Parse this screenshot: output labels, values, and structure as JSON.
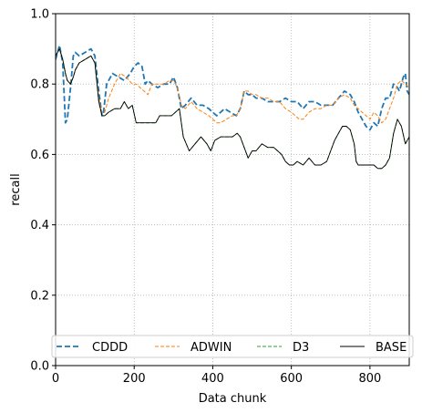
{
  "chart_data": {
    "type": "line",
    "xlabel": "Data chunk",
    "ylabel": "recall",
    "xlim": [
      0,
      900
    ],
    "ylim": [
      0,
      1.0
    ],
    "xticks": [
      0,
      200,
      400,
      600,
      800
    ],
    "xtick_labels": [
      "0",
      "200",
      "400",
      "600",
      "800"
    ],
    "yticks": [
      0.0,
      0.2,
      0.4,
      0.6,
      0.8,
      1.0
    ],
    "ytick_labels": [
      "0.0",
      "0.2",
      "0.4",
      "0.6",
      "0.8",
      "1.0"
    ],
    "grid": true,
    "legend_position": "lower center",
    "series": [
      {
        "name": "CDDD",
        "color": "#1f77b4",
        "style": "dashed",
        "x": [
          0,
          10,
          18,
          25,
          30,
          38,
          45,
          50,
          60,
          75,
          90,
          100,
          110,
          118,
          122,
          130,
          145,
          160,
          175,
          190,
          200,
          210,
          220,
          228,
          235,
          245,
          260,
          275,
          290,
          300,
          310,
          320,
          330,
          345,
          360,
          375,
          390,
          400,
          410,
          420,
          430,
          445,
          460,
          470,
          480,
          490,
          500,
          510,
          525,
          540,
          555,
          570,
          585,
          600,
          615,
          630,
          645,
          660,
          675,
          690,
          705,
          720,
          735,
          750,
          760,
          770,
          780,
          790,
          800,
          810,
          820,
          830,
          840,
          850,
          860,
          870,
          875,
          880,
          885,
          890,
          895,
          900
        ],
        "y": [
          0.87,
          0.91,
          0.86,
          0.69,
          0.7,
          0.79,
          0.88,
          0.89,
          0.88,
          0.89,
          0.9,
          0.88,
          0.78,
          0.71,
          0.72,
          0.8,
          0.83,
          0.82,
          0.81,
          0.83,
          0.85,
          0.86,
          0.85,
          0.8,
          0.81,
          0.8,
          0.79,
          0.8,
          0.8,
          0.82,
          0.79,
          0.73,
          0.74,
          0.76,
          0.74,
          0.74,
          0.73,
          0.72,
          0.71,
          0.72,
          0.73,
          0.72,
          0.71,
          0.73,
          0.78,
          0.77,
          0.77,
          0.76,
          0.76,
          0.75,
          0.75,
          0.75,
          0.76,
          0.75,
          0.75,
          0.73,
          0.75,
          0.75,
          0.74,
          0.74,
          0.74,
          0.76,
          0.78,
          0.77,
          0.75,
          0.72,
          0.7,
          0.68,
          0.67,
          0.69,
          0.68,
          0.73,
          0.76,
          0.76,
          0.8,
          0.79,
          0.78,
          0.8,
          0.82,
          0.83,
          0.78,
          0.77
        ]
      },
      {
        "name": "ADWIN",
        "color": "#ff7f0e",
        "style": "dashed",
        "x": [
          0,
          10,
          18,
          25,
          30,
          38,
          45,
          50,
          60,
          75,
          90,
          100,
          110,
          118,
          125,
          135,
          150,
          165,
          180,
          195,
          205,
          215,
          225,
          235,
          245,
          260,
          275,
          290,
          300,
          310,
          320,
          330,
          345,
          360,
          375,
          390,
          400,
          410,
          420,
          435,
          450,
          460,
          470,
          480,
          490,
          500,
          510,
          525,
          540,
          555,
          570,
          585,
          600,
          610,
          620,
          630,
          645,
          660,
          675,
          690,
          705,
          720,
          735,
          750,
          760,
          770,
          780,
          790,
          800,
          810,
          820,
          830,
          840,
          850,
          860,
          870,
          880,
          890,
          900
        ],
        "y": [
          0.88,
          0.9,
          0.87,
          0.83,
          0.81,
          0.8,
          0.82,
          0.84,
          0.86,
          0.87,
          0.88,
          0.86,
          0.76,
          0.72,
          0.72,
          0.76,
          0.8,
          0.83,
          0.82,
          0.8,
          0.8,
          0.79,
          0.78,
          0.77,
          0.8,
          0.8,
          0.8,
          0.81,
          0.81,
          0.79,
          0.74,
          0.73,
          0.75,
          0.73,
          0.72,
          0.71,
          0.7,
          0.69,
          0.69,
          0.7,
          0.71,
          0.71,
          0.73,
          0.78,
          0.78,
          0.77,
          0.77,
          0.76,
          0.76,
          0.75,
          0.75,
          0.73,
          0.72,
          0.71,
          0.7,
          0.7,
          0.72,
          0.73,
          0.73,
          0.74,
          0.74,
          0.76,
          0.77,
          0.76,
          0.74,
          0.73,
          0.72,
          0.71,
          0.7,
          0.72,
          0.71,
          0.69,
          0.7,
          0.73,
          0.76,
          0.8,
          0.81,
          0.8,
          0.79
        ]
      },
      {
        "name": "D3",
        "color": "#2ca02c",
        "style": "dashed",
        "x": [
          0,
          10,
          18,
          25,
          30,
          38,
          45,
          50,
          60,
          75,
          90,
          100,
          110,
          118,
          125,
          135,
          150,
          165,
          175,
          185,
          195,
          205,
          220,
          240,
          255,
          265,
          280,
          295,
          305,
          315,
          325,
          340,
          355,
          370,
          385,
          395,
          405,
          420,
          435,
          450,
          462,
          470,
          480,
          490,
          500,
          510,
          525,
          540,
          555,
          565,
          575,
          585,
          595,
          605,
          615,
          630,
          645,
          660,
          675,
          690,
          700,
          710,
          720,
          730,
          740,
          750,
          760,
          765,
          770,
          780,
          790,
          800,
          810,
          820,
          830,
          840,
          850,
          860,
          870,
          875,
          880,
          890,
          900
        ],
        "y": [
          0.88,
          0.9,
          0.87,
          0.83,
          0.81,
          0.8,
          0.82,
          0.84,
          0.86,
          0.87,
          0.88,
          0.86,
          0.75,
          0.71,
          0.71,
          0.72,
          0.73,
          0.73,
          0.75,
          0.73,
          0.74,
          0.69,
          0.69,
          0.69,
          0.69,
          0.71,
          0.71,
          0.71,
          0.72,
          0.73,
          0.65,
          0.61,
          0.63,
          0.65,
          0.63,
          0.61,
          0.64,
          0.65,
          0.65,
          0.65,
          0.66,
          0.65,
          0.62,
          0.59,
          0.61,
          0.61,
          0.63,
          0.62,
          0.62,
          0.61,
          0.6,
          0.58,
          0.57,
          0.57,
          0.58,
          0.57,
          0.59,
          0.57,
          0.57,
          0.58,
          0.61,
          0.64,
          0.66,
          0.68,
          0.68,
          0.67,
          0.63,
          0.58,
          0.57,
          0.57,
          0.57,
          0.57,
          0.57,
          0.56,
          0.56,
          0.57,
          0.59,
          0.66,
          0.7,
          0.69,
          0.68,
          0.63,
          0.65
        ]
      },
      {
        "name": "BASE",
        "color": "#000000",
        "style": "solid",
        "x": [
          0,
          10,
          18,
          25,
          30,
          38,
          45,
          50,
          60,
          75,
          90,
          100,
          110,
          118,
          125,
          135,
          150,
          165,
          175,
          185,
          195,
          205,
          220,
          240,
          255,
          265,
          280,
          295,
          305,
          315,
          325,
          340,
          355,
          370,
          385,
          395,
          405,
          420,
          435,
          450,
          462,
          470,
          480,
          490,
          500,
          510,
          525,
          540,
          555,
          565,
          575,
          585,
          595,
          605,
          615,
          630,
          645,
          660,
          675,
          690,
          700,
          710,
          720,
          730,
          740,
          750,
          760,
          765,
          770,
          780,
          790,
          800,
          810,
          820,
          830,
          840,
          850,
          860,
          870,
          875,
          880,
          890,
          900
        ],
        "y": [
          0.88,
          0.9,
          0.87,
          0.83,
          0.81,
          0.8,
          0.82,
          0.84,
          0.86,
          0.87,
          0.88,
          0.86,
          0.75,
          0.71,
          0.71,
          0.72,
          0.73,
          0.73,
          0.75,
          0.73,
          0.74,
          0.69,
          0.69,
          0.69,
          0.69,
          0.71,
          0.71,
          0.71,
          0.72,
          0.73,
          0.65,
          0.61,
          0.63,
          0.65,
          0.63,
          0.61,
          0.64,
          0.65,
          0.65,
          0.65,
          0.66,
          0.65,
          0.62,
          0.59,
          0.61,
          0.61,
          0.63,
          0.62,
          0.62,
          0.61,
          0.6,
          0.58,
          0.57,
          0.57,
          0.58,
          0.57,
          0.59,
          0.57,
          0.57,
          0.58,
          0.61,
          0.64,
          0.66,
          0.68,
          0.68,
          0.67,
          0.63,
          0.58,
          0.57,
          0.57,
          0.57,
          0.57,
          0.57,
          0.56,
          0.56,
          0.57,
          0.59,
          0.66,
          0.7,
          0.69,
          0.68,
          0.63,
          0.65
        ]
      }
    ]
  }
}
